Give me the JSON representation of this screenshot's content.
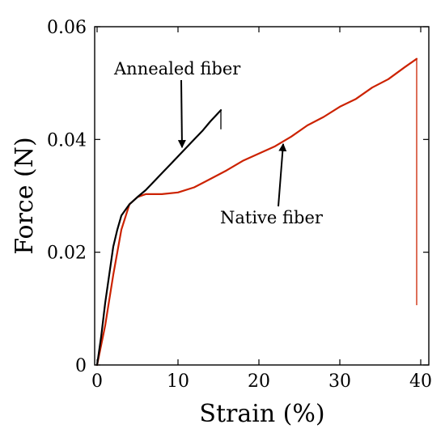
{
  "chart_data": {
    "type": "line",
    "xlabel": "Strain (%)",
    "ylabel": "Force (N)",
    "xlim": [
      -0.3,
      41
    ],
    "ylim": [
      0,
      0.06
    ],
    "x_ticks": [
      0,
      10,
      20,
      30,
      40
    ],
    "x_tick_labels": [
      "0",
      "10",
      "20",
      "30",
      "40"
    ],
    "y_ticks": [
      0,
      0.02,
      0.04,
      0.06
    ],
    "y_tick_labels": [
      "0",
      "0.02",
      "0.04",
      "0.06"
    ],
    "grid": false,
    "legend": "none",
    "series": [
      {
        "name": "Annealed fiber",
        "color": "#000000",
        "points": [
          [
            0,
            0
          ],
          [
            0.5,
            0.005
          ],
          [
            1,
            0.011
          ],
          [
            1.5,
            0.016
          ],
          [
            2,
            0.021
          ],
          [
            2.5,
            0.024
          ],
          [
            3,
            0.0265
          ],
          [
            4,
            0.0285
          ],
          [
            5,
            0.0298
          ],
          [
            6,
            0.031
          ],
          [
            7,
            0.0325
          ],
          [
            8,
            0.034
          ],
          [
            9,
            0.0355
          ],
          [
            10,
            0.037
          ],
          [
            11,
            0.0385
          ],
          [
            12,
            0.04
          ],
          [
            13,
            0.0415
          ],
          [
            14,
            0.0432
          ],
          [
            15.3,
            0.0452
          ]
        ],
        "break_drop": [
          15.3,
          0.0418
        ]
      },
      {
        "name": "Native fiber",
        "color": "#cc2200",
        "points": [
          [
            0,
            0
          ],
          [
            1,
            0.007
          ],
          [
            2,
            0.016
          ],
          [
            3,
            0.024
          ],
          [
            4,
            0.0285
          ],
          [
            5,
            0.0298
          ],
          [
            6,
            0.0303
          ],
          [
            8,
            0.0303
          ],
          [
            10,
            0.0306
          ],
          [
            12,
            0.0315
          ],
          [
            14,
            0.033
          ],
          [
            16,
            0.0345
          ],
          [
            18,
            0.0362
          ],
          [
            20,
            0.0375
          ],
          [
            22,
            0.0388
          ],
          [
            24,
            0.0405
          ],
          [
            26,
            0.0425
          ],
          [
            28,
            0.044
          ],
          [
            30,
            0.0458
          ],
          [
            32,
            0.0472
          ],
          [
            34,
            0.0492
          ],
          [
            36,
            0.0507
          ],
          [
            38,
            0.0528
          ],
          [
            39.5,
            0.0543
          ]
        ],
        "break_drop": [
          39.5,
          0.0106
        ]
      }
    ],
    "annotations": [
      {
        "text": "Annealed fiber",
        "arrow_to": [
          10.5,
          0.0386
        ]
      },
      {
        "text": "Native fiber",
        "arrow_to": [
          23,
          0.0392
        ]
      }
    ]
  }
}
